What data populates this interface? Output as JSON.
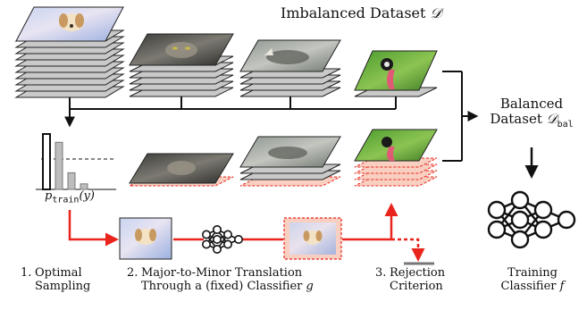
{
  "title": "Imbalanced Dataset",
  "title_symbol": "𝒟",
  "balanced": {
    "line1": "Balanced",
    "line2": "Dataset",
    "symbol": "𝒟",
    "subscript": "bal"
  },
  "prior": {
    "p": "p",
    "subscript": "train",
    "arg": "(y)"
  },
  "steps": [
    {
      "num": "1.",
      "line1": "Optimal",
      "line2": "Sampling"
    },
    {
      "num": "2.",
      "line1": "Major-to-Minor Translation",
      "line2": "Through a (fixed) Classifier",
      "symbol": "g"
    },
    {
      "num": "3.",
      "line1": "Rejection",
      "line2": "Criterion"
    }
  ],
  "training": {
    "line1": "Training",
    "line2": "Classifier",
    "symbol": "f"
  },
  "histogram_values": [
    1.0,
    0.85,
    0.3,
    0.1
  ],
  "colors": {
    "accent_red": "#e8241c",
    "synthetic_fill": "#f8cfc0",
    "stack_gray": "#c9c9c9",
    "stack_edge": "#222222"
  }
}
